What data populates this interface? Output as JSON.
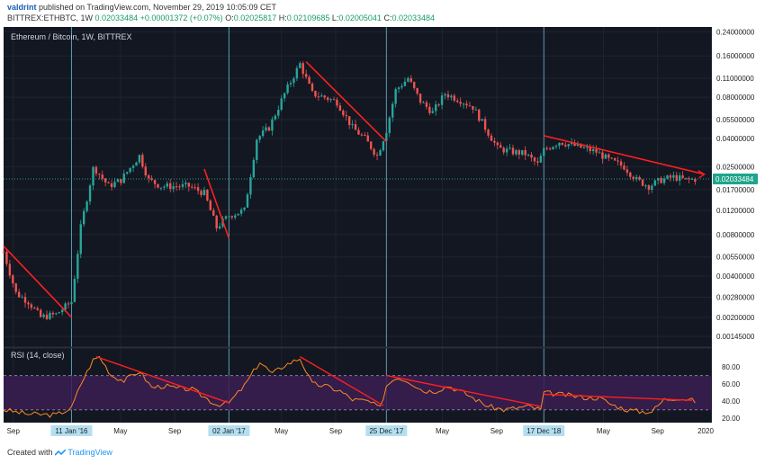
{
  "header": {
    "author": "valdrint",
    "published": "published on TradingView.com, November 29, 2019 10:05:09 CET"
  },
  "ohlc": {
    "symbol": "BITTREX:ETHBTC, 1W",
    "last": "0.02033484",
    "change": "+0.00001372 (+0.07%)",
    "o_label": "O:",
    "o": "0.02025817",
    "h_label": "H:",
    "h": "0.02109685",
    "l_label": "L:",
    "l": "0.02005041",
    "c_label": "C:",
    "c": "0.02033484"
  },
  "footer": {
    "created_with": "Created with",
    "brand": "TradingView"
  },
  "colors": {
    "background": "#131722",
    "up": "#26a69a",
    "down": "#ef5350",
    "trendline": "#ff1f1f",
    "rsi_line": "#ff8a1f",
    "rsi_band": "#3b1d52",
    "last_price_badge": "#1ea48c",
    "date_badge": "#b3dff0",
    "vertical_marker": "#69c0d6"
  },
  "chart_data": [
    {
      "type": "candlestick",
      "title": "Ethereum / Bitcoin, 1W, BITTREX",
      "y_scale": "log",
      "ylim": [
        0.00125,
        0.26
      ],
      "y_ticks": [
        "0.24000000",
        "0.16000000",
        "0.11000000",
        "0.08000000",
        "0.05500000",
        "0.04000000",
        "0.02500000",
        "0.01700000",
        "0.01200000",
        "0.00800000",
        "0.00550000",
        "0.00400000",
        "0.00280000",
        "0.00200000",
        "0.00145000"
      ],
      "last_price": "0.02033484",
      "x_ticks": [
        "Sep",
        "11 Jan '16",
        "May",
        "Sep",
        "02 Jan '17",
        "May",
        "Sep",
        "25 Dec '17",
        "May",
        "Sep",
        "17 Dec '18",
        "May",
        "Sep",
        "2020"
      ],
      "highlighted_dates": [
        "11 Jan '16",
        "02 Jan '17",
        "25 Dec '17",
        "17 Dec '18"
      ],
      "x_start": "2015-08-10",
      "x_end": "2019-12-31",
      "dated_closes": [
        [
          "2015-08-10",
          0.006
        ],
        [
          "2015-09-07",
          0.003
        ],
        [
          "2015-10-05",
          0.0026
        ],
        [
          "2015-11-02",
          0.002
        ],
        [
          "2015-12-07",
          0.0021
        ],
        [
          "2016-01-11",
          0.0026
        ],
        [
          "2016-02-01",
          0.009
        ],
        [
          "2016-03-01",
          0.025
        ],
        [
          "2016-04-04",
          0.018
        ],
        [
          "2016-05-02",
          0.02
        ],
        [
          "2016-06-13",
          0.03
        ],
        [
          "2016-07-04",
          0.02
        ],
        [
          "2016-08-01",
          0.018
        ],
        [
          "2016-09-05",
          0.018
        ],
        [
          "2016-10-03",
          0.018
        ],
        [
          "2016-11-07",
          0.016
        ],
        [
          "2016-12-05",
          0.009
        ],
        [
          "2017-01-02",
          0.011
        ],
        [
          "2017-02-06",
          0.012
        ],
        [
          "2017-03-06",
          0.04
        ],
        [
          "2017-04-03",
          0.048
        ],
        [
          "2017-05-08",
          0.085
        ],
        [
          "2017-06-12",
          0.14
        ],
        [
          "2017-07-10",
          0.085
        ],
        [
          "2017-08-07",
          0.08
        ],
        [
          "2017-09-04",
          0.074
        ],
        [
          "2017-10-09",
          0.048
        ],
        [
          "2017-11-06",
          0.04
        ],
        [
          "2017-12-04",
          0.03
        ],
        [
          "2017-12-25",
          0.046
        ],
        [
          "2018-01-15",
          0.09
        ],
        [
          "2018-02-12",
          0.11
        ],
        [
          "2018-03-12",
          0.075
        ],
        [
          "2018-04-09",
          0.062
        ],
        [
          "2018-05-07",
          0.085
        ],
        [
          "2018-06-11",
          0.076
        ],
        [
          "2018-07-09",
          0.068
        ],
        [
          "2018-08-06",
          0.048
        ],
        [
          "2018-09-03",
          0.034
        ],
        [
          "2018-10-08",
          0.032
        ],
        [
          "2018-11-05",
          0.031
        ],
        [
          "2018-12-03",
          0.026
        ],
        [
          "2018-12-17",
          0.033
        ],
        [
          "2019-01-21",
          0.038
        ],
        [
          "2019-02-18",
          0.036
        ],
        [
          "2019-03-18",
          0.034
        ],
        [
          "2019-04-15",
          0.032
        ],
        [
          "2019-05-13",
          0.028
        ],
        [
          "2019-06-17",
          0.025
        ],
        [
          "2019-07-15",
          0.02
        ],
        [
          "2019-08-12",
          0.018
        ],
        [
          "2019-09-09",
          0.02
        ],
        [
          "2019-10-07",
          0.021
        ],
        [
          "2019-11-04",
          0.02
        ],
        [
          "2019-11-25",
          0.0203
        ]
      ]
    },
    {
      "type": "line",
      "title": "RSI (14, close)",
      "ylim": [
        15,
        100
      ],
      "y_ticks": [
        "80.00",
        "60.00",
        "40.00",
        "20.00"
      ],
      "band": [
        30,
        70
      ],
      "dated_values": [
        [
          "2015-08-10",
          30
        ],
        [
          "2015-10-05",
          25
        ],
        [
          "2015-12-07",
          24
        ],
        [
          "2016-01-11",
          32
        ],
        [
          "2016-02-01",
          60
        ],
        [
          "2016-02-29",
          88
        ],
        [
          "2016-03-14",
          92
        ],
        [
          "2016-04-11",
          70
        ],
        [
          "2016-05-09",
          64
        ],
        [
          "2016-06-13",
          75
        ],
        [
          "2016-07-11",
          56
        ],
        [
          "2016-08-08",
          58
        ],
        [
          "2016-09-05",
          55
        ],
        [
          "2016-10-10",
          54
        ],
        [
          "2016-11-07",
          45
        ],
        [
          "2016-12-05",
          36
        ],
        [
          "2017-01-02",
          38
        ],
        [
          "2017-02-06",
          58
        ],
        [
          "2017-03-13",
          86
        ],
        [
          "2017-04-10",
          72
        ],
        [
          "2017-05-08",
          82
        ],
        [
          "2017-06-12",
          90
        ],
        [
          "2017-07-10",
          60
        ],
        [
          "2017-08-07",
          58
        ],
        [
          "2017-09-11",
          52
        ],
        [
          "2017-10-09",
          42
        ],
        [
          "2017-11-13",
          40
        ],
        [
          "2017-12-11",
          32
        ],
        [
          "2017-12-25",
          58
        ],
        [
          "2018-01-15",
          68
        ],
        [
          "2018-02-12",
          64
        ],
        [
          "2018-03-19",
          52
        ],
        [
          "2018-04-16",
          52
        ],
        [
          "2018-05-14",
          58
        ],
        [
          "2018-06-18",
          50
        ],
        [
          "2018-07-16",
          42
        ],
        [
          "2018-08-13",
          34
        ],
        [
          "2018-09-17",
          30
        ],
        [
          "2018-10-15",
          32
        ],
        [
          "2018-11-12",
          34
        ],
        [
          "2018-12-10",
          30
        ],
        [
          "2018-12-17",
          50
        ],
        [
          "2019-01-21",
          48
        ],
        [
          "2019-02-25",
          46
        ],
        [
          "2019-03-25",
          44
        ],
        [
          "2019-04-22",
          44
        ],
        [
          "2019-05-20",
          36
        ],
        [
          "2019-06-24",
          30
        ],
        [
          "2019-07-22",
          28
        ],
        [
          "2019-08-19",
          28
        ],
        [
          "2019-09-16",
          42
        ],
        [
          "2019-10-14",
          44
        ],
        [
          "2019-11-11",
          42
        ],
        [
          "2019-11-25",
          40
        ]
      ]
    }
  ],
  "trendlines": {
    "price": [
      [
        [
          "2015-08-10",
          0.0066
        ],
        [
          "2016-01-11",
          0.002
        ]
      ],
      [
        [
          "2016-11-07",
          0.024
        ],
        [
          "2017-01-02",
          0.0075
        ]
      ],
      [
        [
          "2017-06-26",
          0.145
        ],
        [
          "2017-12-25",
          0.038
        ]
      ],
      [
        [
          "2018-12-17",
          0.042
        ],
        [
          "2019-12-16",
          0.022
        ]
      ]
    ],
    "rsi": [
      [
        [
          "2016-03-07",
          92
        ],
        [
          "2017-01-02",
          38
        ]
      ],
      [
        [
          "2017-06-12",
          92
        ],
        [
          "2017-12-18",
          35
        ]
      ],
      [
        [
          "2017-12-25",
          70
        ],
        [
          "2018-12-10",
          34
        ]
      ],
      [
        [
          "2018-12-17",
          48
        ],
        [
          "2019-11-18",
          41
        ]
      ]
    ]
  }
}
